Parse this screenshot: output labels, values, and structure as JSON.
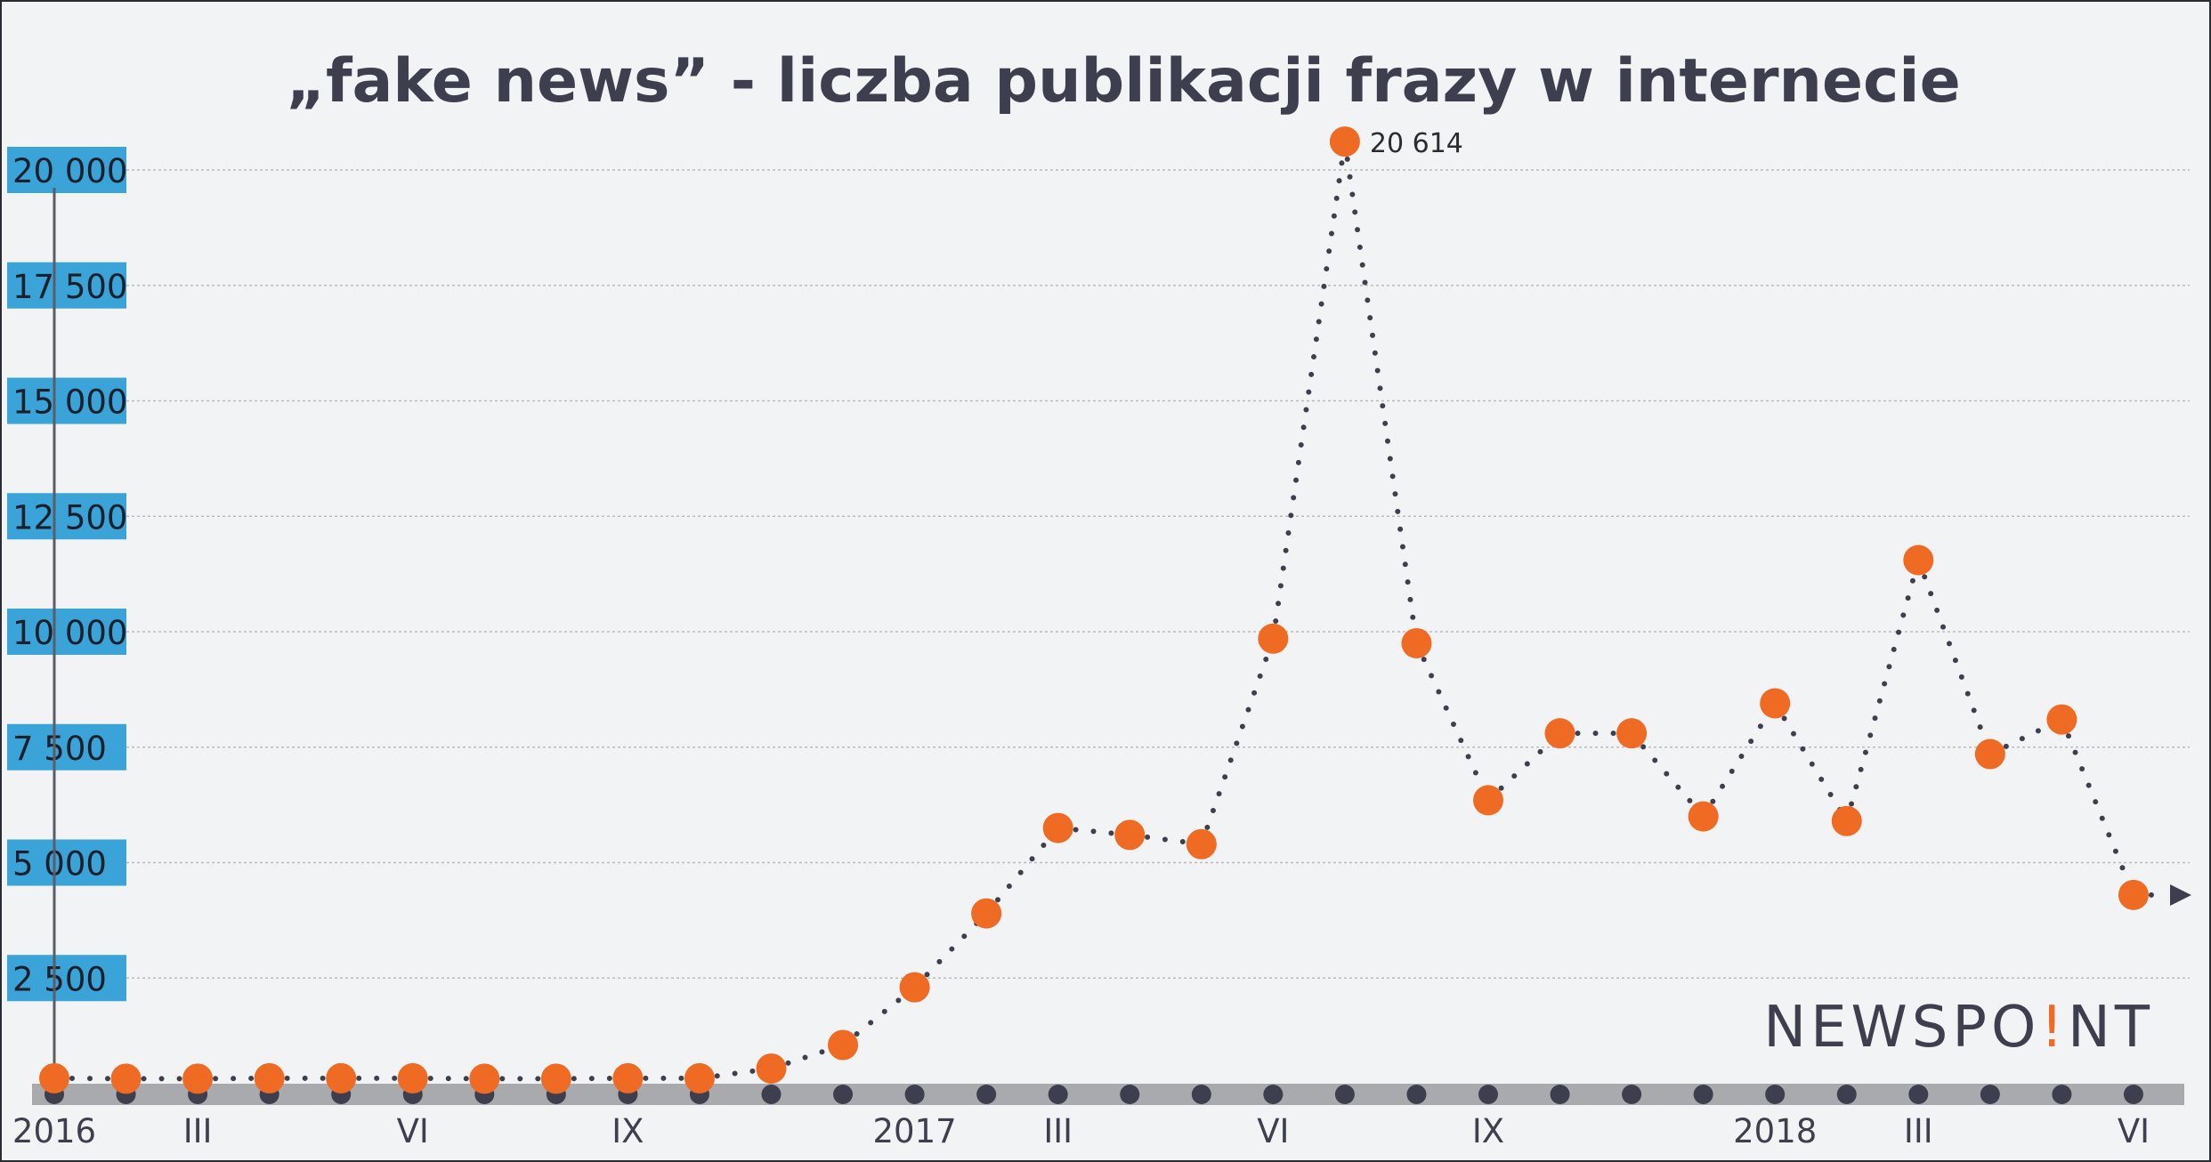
{
  "colors": {
    "background": "#f2f3f5",
    "point": "#ef6a22",
    "dark": "#3d3f4f",
    "ytick_bg": "#3aa3d7",
    "baseline_band": "#a9aaad"
  },
  "logo": {
    "text_before": "NEWSPO",
    "text_i": "!",
    "text_after": "NT",
    "accent": "#ef6a22"
  },
  "chart_data": {
    "type": "line",
    "title": "„fake news” - liczba publikacji frazy w internecie",
    "xlabel": "",
    "ylabel": "",
    "ylim": [
      0,
      21500
    ],
    "yticks": [
      2500,
      5000,
      7500,
      10000,
      12500,
      15000,
      17500,
      20000
    ],
    "ytick_labels": [
      "2 500",
      "5 000",
      "7 500",
      "10 000",
      "12 500",
      "15 000",
      "17 500",
      "20 000"
    ],
    "x": [
      "2016-01",
      "2016-02",
      "2016-03",
      "2016-04",
      "2016-05",
      "2016-06",
      "2016-07",
      "2016-08",
      "2016-09",
      "2016-10",
      "2016-11",
      "2016-12",
      "2017-01",
      "2017-02",
      "2017-03",
      "2017-04",
      "2017-05",
      "2017-06",
      "2017-07",
      "2017-08",
      "2017-09",
      "2017-10",
      "2017-11",
      "2017-12",
      "2018-01",
      "2018-02",
      "2018-03",
      "2018-04",
      "2018-05",
      "2018-06"
    ],
    "x_tick_labels": [
      {
        "index": 0,
        "label": "2016"
      },
      {
        "index": 2,
        "label": "III"
      },
      {
        "index": 5,
        "label": "VI"
      },
      {
        "index": 8,
        "label": "IX"
      },
      {
        "index": 12,
        "label": "2017"
      },
      {
        "index": 14,
        "label": "III"
      },
      {
        "index": 17,
        "label": "VI"
      },
      {
        "index": 20,
        "label": "IX"
      },
      {
        "index": 24,
        "label": "2018"
      },
      {
        "index": 26,
        "label": "III"
      },
      {
        "index": 29,
        "label": "VI"
      }
    ],
    "series": [
      {
        "values": [
          330,
          320,
          320,
          330,
          330,
          330,
          320,
          320,
          330,
          330,
          540,
          1050,
          2300,
          3900,
          5750,
          5600,
          5400,
          9850,
          20614,
          9750,
          6350,
          7800,
          7800,
          6000,
          8450,
          5900,
          11550,
          7350,
          8100,
          4300
        ],
        "color": "#ef6a22"
      }
    ],
    "annotations": [
      {
        "index": 18,
        "text": "20 614"
      }
    ],
    "grid": true,
    "legend": "none"
  }
}
